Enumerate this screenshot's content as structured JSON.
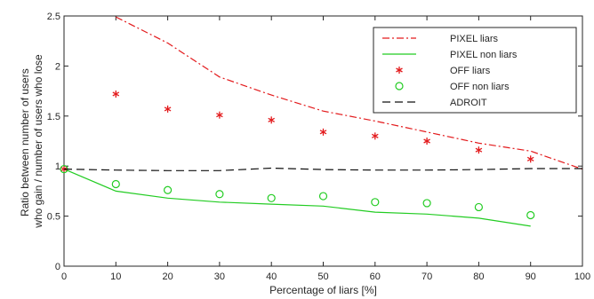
{
  "chart_data": {
    "type": "line",
    "xlabel": "Percentage of liars [%]",
    "ylabel": [
      "Ratio between number of users",
      "who gain / number of users who lose"
    ],
    "xlim": [
      0,
      100
    ],
    "ylim": [
      0,
      2.5
    ],
    "x_ticks": [
      "0",
      "10",
      "20",
      "30",
      "40",
      "50",
      "60",
      "70",
      "80",
      "90",
      "100"
    ],
    "y_ticks": [
      "0",
      "0.5",
      "1",
      "1.5",
      "2",
      "2.5"
    ],
    "grid": false,
    "legend_position": "top-right",
    "series": [
      {
        "name": "PIXEL liars",
        "style": "dash-dot line",
        "color": "#e31a1c",
        "x": [
          10,
          20,
          30,
          40,
          50,
          60,
          70,
          80,
          90,
          100
        ],
        "y": [
          2.49,
          2.23,
          1.89,
          1.71,
          1.55,
          1.45,
          1.34,
          1.23,
          1.15,
          0.97
        ]
      },
      {
        "name": "PIXEL non liars",
        "style": "solid line",
        "color": "#22cc22",
        "x": [
          0,
          10,
          20,
          30,
          40,
          50,
          60,
          70,
          80,
          90
        ],
        "y": [
          0.97,
          0.75,
          0.68,
          0.64,
          0.62,
          0.6,
          0.54,
          0.52,
          0.48,
          0.4
        ]
      },
      {
        "name": "OFF liars",
        "style": "asterisk markers",
        "color": "#e31a1c",
        "x": [
          0,
          10,
          20,
          30,
          40,
          50,
          60,
          70,
          80,
          90
        ],
        "y": [
          0.97,
          1.72,
          1.57,
          1.51,
          1.46,
          1.34,
          1.3,
          1.25,
          1.16,
          1.07
        ]
      },
      {
        "name": "OFF non liars",
        "style": "circle markers",
        "color": "#22cc22",
        "x": [
          0,
          10,
          20,
          30,
          40,
          50,
          60,
          70,
          80,
          90
        ],
        "y": [
          0.97,
          0.82,
          0.76,
          0.72,
          0.68,
          0.7,
          0.64,
          0.63,
          0.59,
          0.51
        ]
      },
      {
        "name": "ADROIT",
        "style": "dashed line",
        "color": "#111111",
        "x": [
          0,
          10,
          20,
          30,
          40,
          50,
          60,
          70,
          80,
          90,
          100
        ],
        "y": [
          0.97,
          0.96,
          0.955,
          0.955,
          0.98,
          0.965,
          0.96,
          0.96,
          0.965,
          0.975,
          0.975
        ]
      }
    ]
  }
}
